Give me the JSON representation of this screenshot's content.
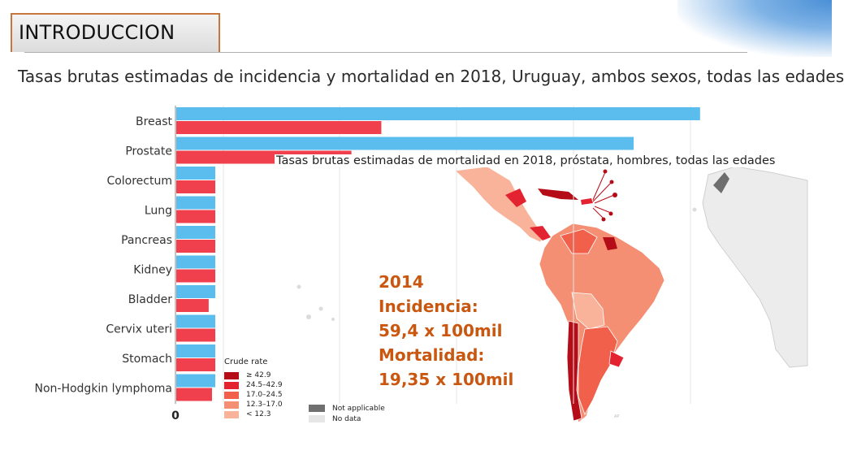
{
  "slide": {
    "title": "INTRODUCCION"
  },
  "heading": "Tasas brutas estimadas de incidencia y mortalidad en 2018, Uruguay, ambos sexos, todas las edades",
  "chart_data": [
    {
      "type": "bar",
      "orientation": "horizontal",
      "categories": [
        "Breast",
        "Prostate",
        "Colorectum",
        "Lung",
        "Pancreas",
        "Kidney",
        "Bladder",
        "Cervix uteri",
        "Stomach",
        "Non-Hodgkin lymphoma"
      ],
      "series": [
        {
          "color": "#5bbdee",
          "values": [
            158,
            138,
            12,
            12,
            12,
            12,
            12,
            12,
            12,
            12
          ]
        },
        {
          "color": "#f0404e",
          "values": [
            62,
            53,
            12,
            12,
            12,
            12,
            10,
            12,
            12,
            11
          ]
        }
      ],
      "x_tick_labels": [
        "0"
      ],
      "xlim": [
        0,
        160
      ]
    },
    {
      "type": "map",
      "title": "Tasas brutas estimadas de mortalidad en 2018, próstata, hombres, todas las edades",
      "legend_title": "Crude rate",
      "legend": [
        {
          "label": "≥ 42.9",
          "color": "#b50d17"
        },
        {
          "label": "24.5–42.9",
          "color": "#e32430"
        },
        {
          "label": "17.0–24.5",
          "color": "#f0604a"
        },
        {
          "label": "12.3–17.0",
          "color": "#f58f74"
        },
        {
          "label": "< 12.3",
          "color": "#f9b39b"
        }
      ],
      "legend_extra": [
        {
          "label": "Not applicable",
          "color": "#707070"
        },
        {
          "label": "No data",
          "color": "#e6e6e6"
        }
      ]
    }
  ],
  "stats": {
    "year": "2014",
    "incidence_label": "Incidencia:",
    "incidence_value": "59,4 x 100mil",
    "mortality_label": "Mortalidad:",
    "mortality_value": "19,35 x 100mil"
  }
}
